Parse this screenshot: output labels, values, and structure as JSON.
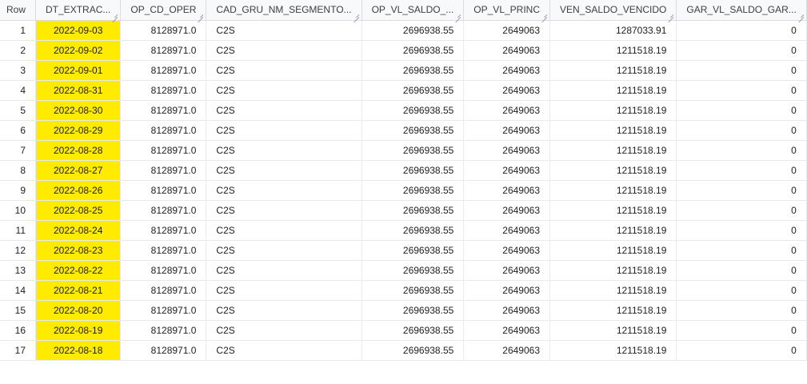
{
  "columns": [
    "Row",
    "DT_EXTRAC...",
    "OP_CD_OPER",
    "CAD_GRU_NM_SEGMENTO...",
    "OP_VL_SALDO_...",
    "OP_VL_PRINC",
    "VEN_SALDO_VENCIDO",
    "GAR_VL_SALDO_GAR..."
  ],
  "highlight_color": "#ffeb00",
  "rows": [
    [
      "1",
      "2022-09-03",
      "8128971.0",
      "C2S",
      "2696938.55",
      "2649063",
      "1287033.91",
      "0"
    ],
    [
      "2",
      "2022-09-02",
      "8128971.0",
      "C2S",
      "2696938.55",
      "2649063",
      "1211518.19",
      "0"
    ],
    [
      "3",
      "2022-09-01",
      "8128971.0",
      "C2S",
      "2696938.55",
      "2649063",
      "1211518.19",
      "0"
    ],
    [
      "4",
      "2022-08-31",
      "8128971.0",
      "C2S",
      "2696938.55",
      "2649063",
      "1211518.19",
      "0"
    ],
    [
      "5",
      "2022-08-30",
      "8128971.0",
      "C2S",
      "2696938.55",
      "2649063",
      "1211518.19",
      "0"
    ],
    [
      "6",
      "2022-08-29",
      "8128971.0",
      "C2S",
      "2696938.55",
      "2649063",
      "1211518.19",
      "0"
    ],
    [
      "7",
      "2022-08-28",
      "8128971.0",
      "C2S",
      "2696938.55",
      "2649063",
      "1211518.19",
      "0"
    ],
    [
      "8",
      "2022-08-27",
      "8128971.0",
      "C2S",
      "2696938.55",
      "2649063",
      "1211518.19",
      "0"
    ],
    [
      "9",
      "2022-08-26",
      "8128971.0",
      "C2S",
      "2696938.55",
      "2649063",
      "1211518.19",
      "0"
    ],
    [
      "10",
      "2022-08-25",
      "8128971.0",
      "C2S",
      "2696938.55",
      "2649063",
      "1211518.19",
      "0"
    ],
    [
      "11",
      "2022-08-24",
      "8128971.0",
      "C2S",
      "2696938.55",
      "2649063",
      "1211518.19",
      "0"
    ],
    [
      "12",
      "2022-08-23",
      "8128971.0",
      "C2S",
      "2696938.55",
      "2649063",
      "1211518.19",
      "0"
    ],
    [
      "13",
      "2022-08-22",
      "8128971.0",
      "C2S",
      "2696938.55",
      "2649063",
      "1211518.19",
      "0"
    ],
    [
      "14",
      "2022-08-21",
      "8128971.0",
      "C2S",
      "2696938.55",
      "2649063",
      "1211518.19",
      "0"
    ],
    [
      "15",
      "2022-08-20",
      "8128971.0",
      "C2S",
      "2696938.55",
      "2649063",
      "1211518.19",
      "0"
    ],
    [
      "16",
      "2022-08-19",
      "8128971.0",
      "C2S",
      "2696938.55",
      "2649063",
      "1211518.19",
      "0"
    ],
    [
      "17",
      "2022-08-18",
      "8128971.0",
      "C2S",
      "2696938.55",
      "2649063",
      "1211518.19",
      "0"
    ]
  ]
}
